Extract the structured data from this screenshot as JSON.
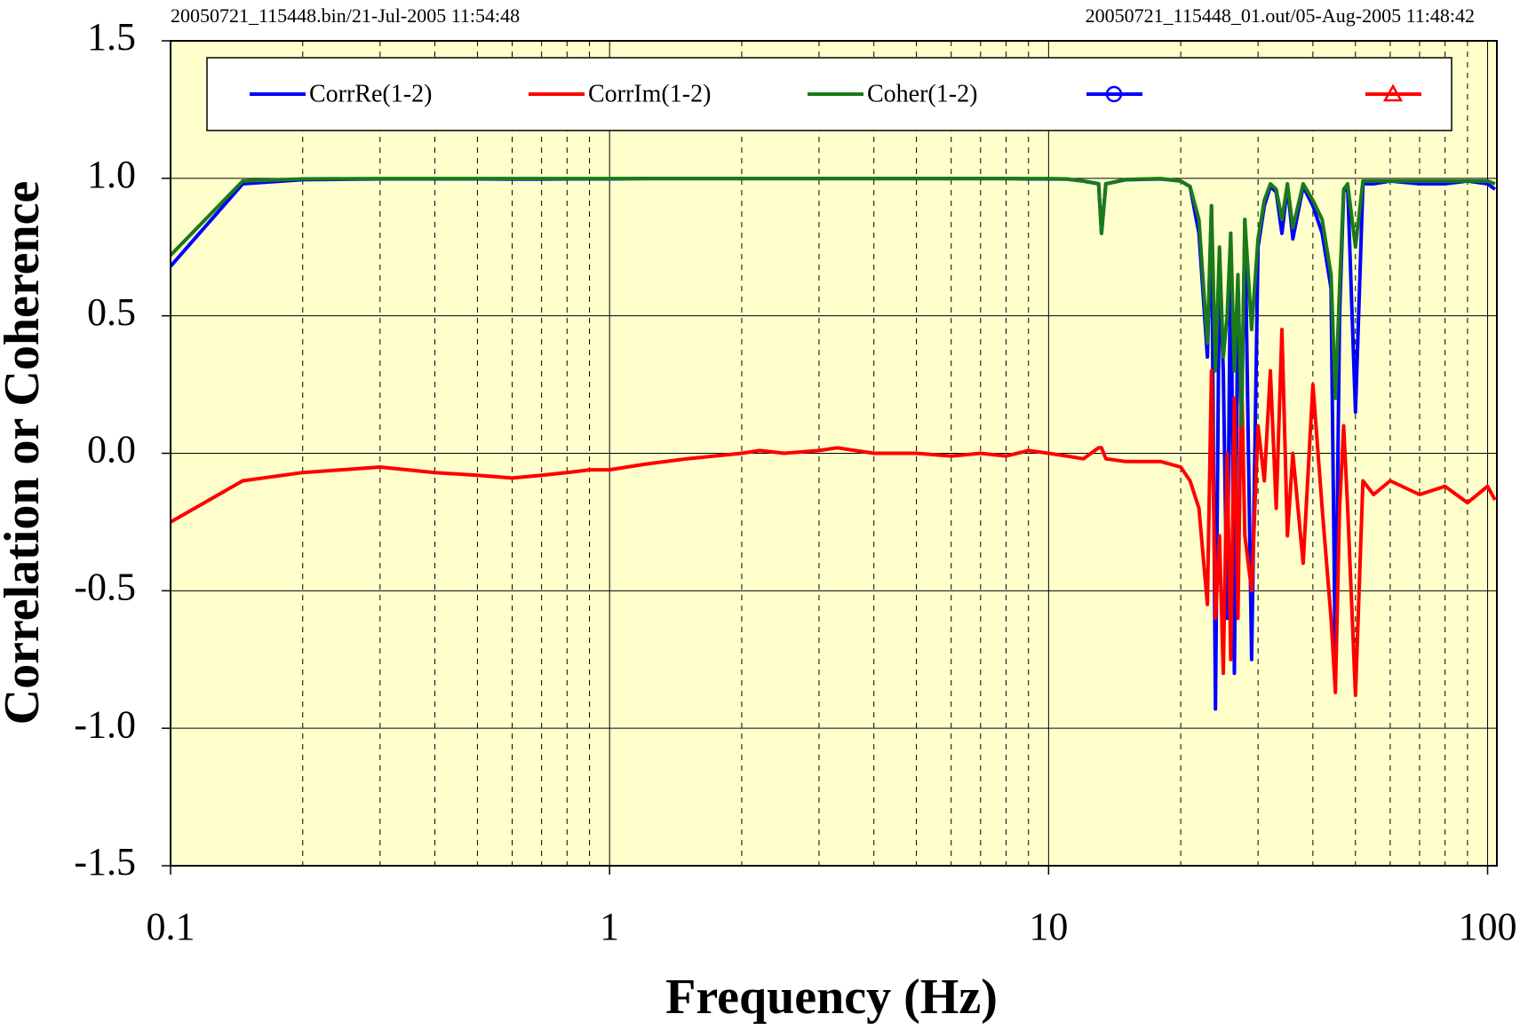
{
  "chart_data": {
    "type": "line",
    "annotations": [
      "20050721_115448.bin/21-Jul-2005 11:54:48",
      "20050721_115448_01.out/05-Aug-2005 11:48:42"
    ],
    "x_label": "Frequency (Hz)",
    "y_label": "Correlation or Coherence",
    "x": [
      0.1,
      0.146,
      0.2,
      0.3,
      0.4,
      0.5,
      0.6,
      0.7,
      0.8,
      0.9,
      1,
      1.2,
      1.5,
      2,
      2.2,
      2.5,
      3,
      3.3,
      4,
      5,
      6,
      7,
      8,
      9,
      10,
      11,
      12,
      13,
      13.2,
      13.5,
      15,
      18,
      20,
      21,
      22,
      23,
      23.5,
      24,
      24.5,
      25,
      25.5,
      26,
      26.5,
      27,
      27.5,
      28,
      29,
      30,
      31,
      32,
      33,
      34,
      35,
      36,
      38,
      40,
      42,
      44,
      45,
      46,
      47,
      48,
      50,
      52,
      55,
      60,
      70,
      80,
      90,
      100,
      104
    ],
    "series": [
      {
        "name": "CorrRe(1-2)",
        "color": "#0000ff",
        "values": [
          0.68,
          0.98,
          0.995,
          0.998,
          0.998,
          0.998,
          0.997,
          0.997,
          0.998,
          0.998,
          0.998,
          0.999,
          0.999,
          0.999,
          0.999,
          0.999,
          0.999,
          0.999,
          0.999,
          0.999,
          0.999,
          0.999,
          0.999,
          0.998,
          0.998,
          0.997,
          0.99,
          0.98,
          0.8,
          0.98,
          0.995,
          0.998,
          0.99,
          0.97,
          0.8,
          0.35,
          0.9,
          -0.93,
          0.7,
          0.3,
          -0.6,
          0.8,
          -0.8,
          0.6,
          0.1,
          0.85,
          -0.75,
          0.75,
          0.9,
          0.97,
          0.95,
          0.8,
          0.97,
          0.78,
          0.97,
          0.9,
          0.8,
          0.6,
          -0.8,
          0.5,
          0.95,
          0.97,
          0.15,
          0.98,
          0.98,
          0.99,
          0.98,
          0.98,
          0.99,
          0.98,
          0.96
        ]
      },
      {
        "name": "CorrIm(1-2)",
        "color": "#ff0000",
        "values": [
          -0.25,
          -0.1,
          -0.07,
          -0.05,
          -0.07,
          -0.08,
          -0.09,
          -0.08,
          -0.07,
          -0.06,
          -0.06,
          -0.04,
          -0.02,
          0.0,
          0.01,
          0.0,
          0.01,
          0.02,
          0.0,
          0.0,
          -0.01,
          0.0,
          -0.01,
          0.01,
          0.0,
          -0.01,
          -0.02,
          0.02,
          0.02,
          -0.02,
          -0.03,
          -0.03,
          -0.05,
          -0.1,
          -0.2,
          -0.55,
          0.3,
          -0.6,
          -0.3,
          -0.8,
          0.0,
          -0.75,
          0.2,
          -0.6,
          0.3,
          -0.3,
          -0.5,
          0.1,
          -0.1,
          0.3,
          -0.2,
          0.45,
          -0.3,
          0.0,
          -0.4,
          0.25,
          -0.2,
          -0.6,
          -0.87,
          -0.2,
          0.1,
          -0.2,
          -0.88,
          -0.1,
          -0.15,
          -0.1,
          -0.15,
          -0.12,
          -0.18,
          -0.12,
          -0.17
        ]
      },
      {
        "name": "Coher(1-2)",
        "color": "#1a7a1a",
        "values": [
          0.72,
          0.99,
          0.998,
          0.999,
          0.999,
          0.999,
          0.999,
          0.999,
          0.999,
          0.999,
          0.999,
          0.999,
          0.999,
          0.999,
          0.999,
          0.999,
          0.999,
          0.999,
          0.999,
          0.999,
          0.999,
          0.999,
          0.999,
          0.999,
          0.999,
          0.998,
          0.99,
          0.98,
          0.8,
          0.98,
          0.996,
          0.999,
          0.99,
          0.97,
          0.85,
          0.4,
          0.9,
          0.3,
          0.75,
          0.35,
          0.5,
          0.8,
          0.3,
          0.65,
          0.1,
          0.85,
          0.45,
          0.78,
          0.92,
          0.98,
          0.96,
          0.85,
          0.98,
          0.82,
          0.98,
          0.92,
          0.85,
          0.65,
          0.2,
          0.6,
          0.96,
          0.98,
          0.75,
          0.99,
          0.99,
          0.99,
          0.99,
          0.99,
          0.99,
          0.99,
          0.98
        ]
      },
      {
        "color": "#0000ff",
        "marker": "circle"
      },
      {
        "color": "#ff0000",
        "marker": "triangle"
      },
      {
        "color": "#1a7a1a",
        "marker": "x"
      }
    ],
    "xscale": "log",
    "xlim": [
      0.1,
      105
    ],
    "xticks": [
      0.1,
      1,
      10,
      100
    ],
    "xminorticks": [
      0.2,
      0.3,
      0.4,
      0.5,
      0.6,
      0.7,
      0.8,
      0.9,
      2,
      3,
      4,
      5,
      6,
      7,
      8,
      9,
      20,
      30,
      40,
      50,
      60,
      70,
      80,
      90
    ],
    "ylim": [
      -1.5,
      1.5
    ],
    "yticks": [
      -1.5,
      {
        "value": -1,
        "label": "-1.0"
      },
      -0.5,
      {
        "value": 0,
        "label": "0.0"
      },
      0.5,
      {
        "value": 1,
        "label": "1.0"
      },
      1.5
    ],
    "grid": true,
    "background": "#ffffcc",
    "legend": "top"
  }
}
